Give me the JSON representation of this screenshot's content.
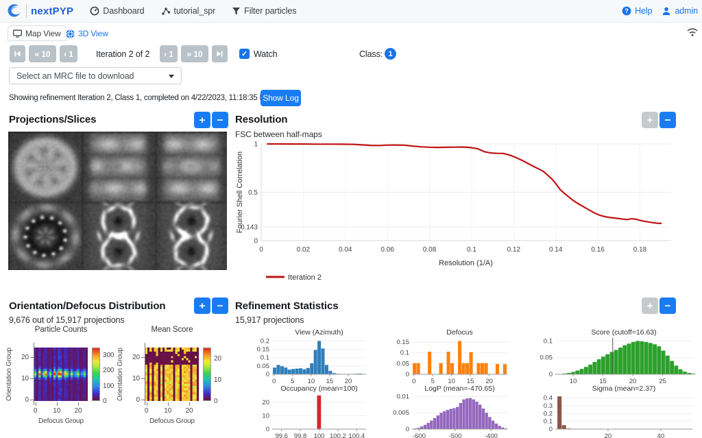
{
  "navbar": {
    "brand": "nextPYP",
    "items": [
      {
        "label": "Dashboard",
        "icon": "dashboard-gauge"
      },
      {
        "label": "tutorial_spr",
        "icon": "project-nodes"
      },
      {
        "label": "Filter particles",
        "icon": "filter-funnel"
      }
    ],
    "right": [
      {
        "label": "Help",
        "icon": "help-circle"
      },
      {
        "label": "admin",
        "icon": "user-person"
      }
    ]
  },
  "tabs": [
    {
      "label": "Map View",
      "icon": "monitor",
      "active": true
    },
    {
      "label": "3D View",
      "icon": "sphere-3d",
      "active": false
    }
  ],
  "controls": {
    "back_10": "« 10",
    "back_1": "‹ 1",
    "iteration_label": "Iteration 2 of 2",
    "fwd_1": "› 1",
    "fwd_10": "» 10",
    "watch_label": "Watch",
    "watch_checked": "✓",
    "class_label": "Class:",
    "class_value": "1"
  },
  "mrc_select": {
    "value": "Select an MRC file to download"
  },
  "status": {
    "text": "Showing refinement Iteration 2, Class 1, completed on 4/22/2023, 11:18:35 PM",
    "show_log": "Show Log"
  },
  "panels": {
    "projections": {
      "title": "Projections/Slices",
      "grid_rows": 2,
      "grid_cols": 3,
      "content": "grayscale EM map projections and slices"
    },
    "resolution": {
      "title": "Resolution",
      "subtitle": "FSC between half-maps"
    },
    "orientation": {
      "title": "Orientation/Defocus Distribution",
      "subtitle": "9,676 out of 15,917 projections"
    },
    "refinement": {
      "title": "Refinement Statistics",
      "subtitle": "15,917 projections"
    }
  },
  "chart_data": [
    {
      "type": "line",
      "id": "fsc",
      "title": "Resolution",
      "xlabel": "Resolution (1/A)",
      "ylabel": "Fourier Shell Correlation",
      "legend": "Iteration 2",
      "line_color": "#c11414",
      "xticks": [
        0,
        0.02,
        0.04,
        0.06,
        0.08,
        0.1,
        0.12,
        0.14,
        0.16,
        0.18
      ],
      "xtick_labels": [
        "0",
        "0.02",
        "0.04",
        "0.06",
        "0.08",
        "0.1",
        "0.12",
        "0.14",
        "0.16",
        "0.18"
      ],
      "yticks": [
        0,
        0.143,
        0.5,
        1
      ],
      "ytick_labels": [
        "0",
        "0.143",
        "0.5",
        "1"
      ],
      "xlim": [
        0,
        0.1945
      ],
      "ylim": [
        0,
        1
      ],
      "points": [
        [
          0.003,
          1.0
        ],
        [
          0.008,
          1.0
        ],
        [
          0.014,
          0.999
        ],
        [
          0.02,
          0.999
        ],
        [
          0.026,
          0.998
        ],
        [
          0.032,
          0.998
        ],
        [
          0.038,
          0.997
        ],
        [
          0.044,
          0.996
        ],
        [
          0.048,
          0.99
        ],
        [
          0.052,
          0.985
        ],
        [
          0.056,
          0.984
        ],
        [
          0.06,
          0.988
        ],
        [
          0.064,
          0.989
        ],
        [
          0.068,
          0.987
        ],
        [
          0.072,
          0.978
        ],
        [
          0.076,
          0.97
        ],
        [
          0.08,
          0.966
        ],
        [
          0.084,
          0.964
        ],
        [
          0.088,
          0.965
        ],
        [
          0.092,
          0.967
        ],
        [
          0.096,
          0.968
        ],
        [
          0.1,
          0.962
        ],
        [
          0.103,
          0.95
        ],
        [
          0.106,
          0.92
        ],
        [
          0.109,
          0.907
        ],
        [
          0.112,
          0.903
        ],
        [
          0.115,
          0.902
        ],
        [
          0.118,
          0.885
        ],
        [
          0.121,
          0.86
        ],
        [
          0.124,
          0.83
        ],
        [
          0.127,
          0.795
        ],
        [
          0.13,
          0.762
        ],
        [
          0.132,
          0.74
        ],
        [
          0.134,
          0.718
        ],
        [
          0.136,
          0.68
        ],
        [
          0.138,
          0.64
        ],
        [
          0.14,
          0.59
        ],
        [
          0.142,
          0.53
        ],
        [
          0.144,
          0.49
        ],
        [
          0.146,
          0.455
        ],
        [
          0.148,
          0.42
        ],
        [
          0.15,
          0.39
        ],
        [
          0.152,
          0.365
        ],
        [
          0.154,
          0.34
        ],
        [
          0.156,
          0.315
        ],
        [
          0.158,
          0.29
        ],
        [
          0.16,
          0.27
        ],
        [
          0.162,
          0.255
        ],
        [
          0.164,
          0.245
        ],
        [
          0.166,
          0.238
        ],
        [
          0.168,
          0.233
        ],
        [
          0.17,
          0.228
        ],
        [
          0.172,
          0.222
        ],
        [
          0.174,
          0.218
        ],
        [
          0.176,
          0.226
        ],
        [
          0.178,
          0.222
        ],
        [
          0.18,
          0.21
        ],
        [
          0.182,
          0.2
        ],
        [
          0.184,
          0.193
        ],
        [
          0.186,
          0.186
        ],
        [
          0.188,
          0.18
        ],
        [
          0.19,
          0.178
        ]
      ]
    },
    {
      "type": "heatmap",
      "id": "particle-counts",
      "title": "Particle Counts",
      "xlabel": "Defocus Group",
      "ylabel": "Orientation Group",
      "n": 25,
      "xticks": [
        0,
        10,
        20
      ],
      "yticks": [
        0,
        10,
        20
      ],
      "zmax": 350,
      "colorbar_ticks": [
        0,
        100,
        200,
        300
      ],
      "pattern": {
        "kind": "counts",
        "band_center": 12.2,
        "band_sigma": 1.15,
        "band_peak": 345,
        "col_base": 45,
        "col_weights": [
          0.55,
          0.15,
          0.85,
          0.2,
          0.6,
          0.8,
          0.22,
          0.55,
          0.18,
          0.95,
          0.35,
          1.0,
          0.9,
          0.22,
          0.75,
          0.55,
          0.2,
          0.6,
          0.25,
          0.35,
          0.6,
          0.2,
          0.3,
          0.55,
          0.15
        ]
      }
    },
    {
      "type": "heatmap",
      "id": "mean-score",
      "title": "Mean Score",
      "xlabel": "Defocus Group",
      "ylabel": "Orientation Group",
      "n": 25,
      "xticks": [
        0,
        10,
        20
      ],
      "yticks": [
        0,
        10,
        20
      ],
      "zmax": 25,
      "colorbar_ticks": [
        0,
        10,
        20
      ],
      "pattern": {
        "kind": "score",
        "value_lo": 18.0,
        "value_hi": 22.0,
        "empty_col_threshold": 0.25,
        "top_band_rows": [
          17,
          22
        ],
        "col_weights": [
          0.55,
          0.15,
          0.85,
          0.2,
          0.6,
          0.8,
          0.22,
          0.55,
          0.18,
          0.95,
          0.35,
          1.0,
          0.9,
          0.22,
          0.75,
          0.55,
          0.2,
          0.6,
          0.25,
          0.35,
          0.6,
          0.2,
          0.3,
          0.55,
          0.15
        ]
      }
    },
    {
      "type": "bar",
      "id": "view-azimuth",
      "title": "View (Azimuth)",
      "color": "#2e7ebc",
      "x0": -0.3,
      "binw": 1.0,
      "values": [
        0.04,
        0.056,
        0.048,
        0.04,
        0.028,
        0.032,
        0.034,
        0.036,
        0.03,
        0.038,
        0.066,
        0.146,
        0.2,
        0.155,
        0.056,
        0.02,
        0.007,
        0.003,
        0.002,
        0.002,
        0.002,
        0.002,
        0.003,
        0.004,
        0.001
      ],
      "xlim": [
        -0.5,
        24.8
      ],
      "xticks": [
        0,
        5,
        10,
        15,
        20
      ],
      "xtick_labels": [
        "0",
        "5",
        "10",
        "15",
        "20"
      ],
      "ylim": [
        0,
        0.21
      ],
      "yticks": [
        0,
        0.05,
        0.1,
        0.15,
        0.2
      ],
      "ytick_labels": [
        "0",
        "0.05",
        "0.1",
        "0.15",
        "0.2"
      ]
    },
    {
      "type": "bar",
      "id": "defocus",
      "title": "Defocus",
      "color": "#fd810d",
      "x0": -0.3,
      "binw": 1.0,
      "values": [
        0.052,
        0.052,
        0,
        0,
        0.105,
        0,
        0,
        0.052,
        0,
        0.105,
        0.052,
        0,
        0.155,
        0.052,
        0.052,
        0.103,
        0,
        0.052,
        0.052,
        0.052,
        0,
        0,
        0.048,
        0,
        0.047
      ],
      "xlim": [
        -0.5,
        24.8
      ],
      "xticks": [
        0,
        5,
        10,
        15,
        20
      ],
      "xtick_labels": [
        "0",
        "5",
        "10",
        "15",
        "20"
      ],
      "ylim": [
        0,
        0.163
      ],
      "yticks": [
        0,
        0.05,
        0.1,
        0.15
      ],
      "ytick_labels": [
        "0",
        "0.05",
        "0.1",
        "0.15"
      ]
    },
    {
      "type": "bar",
      "id": "score",
      "title": "Score (cutoff=16.63)",
      "color": "#2ca02c",
      "cutoff": 16.63,
      "x0": 7.5,
      "binw": 0.72,
      "values": [
        0.001,
        0.002,
        0.004,
        0.007,
        0.011,
        0.016,
        0.022,
        0.029,
        0.037,
        0.045,
        0.053,
        0.06,
        0.067,
        0.073,
        0.08,
        0.087,
        0.092,
        0.097,
        0.1,
        0.099,
        0.097,
        0.094,
        0.09,
        0.084,
        0.071,
        0.056,
        0.04,
        0.026,
        0.015,
        0.008,
        0.004,
        0.002
      ],
      "xlim": [
        7,
        30
      ],
      "xticks": [
        10,
        15,
        20,
        25
      ],
      "xtick_labels": [
        "10",
        "15",
        "20",
        "25"
      ],
      "ylim": [
        0,
        0.105
      ],
      "yticks": [
        0,
        0.05,
        0.1
      ],
      "ytick_labels": [
        "0",
        "0.05",
        "0.1"
      ]
    },
    {
      "type": "bar",
      "id": "occupancy",
      "title": "Occupancy (mean=100)",
      "color": "#d62728",
      "x0": 99.978,
      "binw": 0.045,
      "values": [
        25
      ],
      "xlim": [
        99.5,
        100.5
      ],
      "xticks": [
        99.6,
        99.8,
        100,
        100.2,
        100.4
      ],
      "xtick_labels": [
        "99.6",
        "99.8",
        "100",
        "100.2",
        "100.4"
      ],
      "ylim": [
        0,
        25.5
      ],
      "yticks": [
        0,
        10,
        20
      ],
      "ytick_labels": [
        "0",
        "10",
        "20"
      ]
    },
    {
      "type": "bar",
      "id": "logp",
      "title": "LogP (mean=-470.65)",
      "color": "#9467bd",
      "x0": -615,
      "binw": 9,
      "values": [
        0.0002,
        0.0004,
        0.0008,
        0.0013,
        0.0019,
        0.0026,
        0.0034,
        0.0042,
        0.005,
        0.0055,
        0.0059,
        0.0062,
        0.0064,
        0.0068,
        0.008,
        0.0091,
        0.0094,
        0.0095,
        0.0091,
        0.0084,
        0.0075,
        0.0063,
        0.005,
        0.0037,
        0.0026,
        0.0017,
        0.001,
        0.0005,
        0.0002
      ],
      "xlim": [
        -620,
        -355
      ],
      "xticks": [
        -600,
        -500,
        -400
      ],
      "xtick_labels": [
        "-600",
        "-500",
        "-400"
      ],
      "ylim": [
        0,
        0.0105
      ],
      "yticks": [
        0,
        0.005,
        0.01
      ],
      "ytick_labels": [
        "0",
        "0.005",
        "0.01"
      ]
    },
    {
      "type": "bar",
      "id": "sigma",
      "title": "Sigma (mean=2.37)",
      "color": "#8c564b",
      "x0": 0.8,
      "binw": 1.7,
      "values": [
        0.42,
        0.05,
        0.008,
        0.003,
        0.002,
        0.001,
        0.001,
        0,
        0,
        0,
        0,
        0,
        0,
        0,
        0,
        0,
        0,
        0,
        0,
        0,
        0,
        0,
        0,
        0,
        0,
        0,
        0,
        0,
        0,
        0
      ],
      "xlim": [
        0,
        52
      ],
      "xticks": [
        20,
        40
      ],
      "xtick_labels": [
        "20",
        "40"
      ],
      "ylim": [
        0,
        0.44
      ],
      "yticks": [
        0,
        0.1,
        0.2,
        0.3,
        0.4
      ],
      "ytick_labels": [
        "0",
        "0.1",
        "0.2",
        "0.3",
        "0.4"
      ]
    }
  ]
}
